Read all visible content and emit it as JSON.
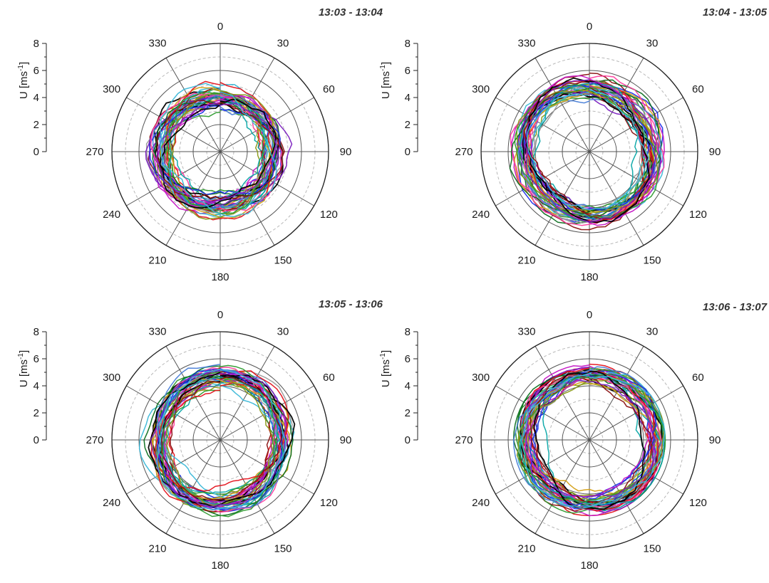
{
  "figure": {
    "panels": [
      {
        "title": "13:03 - 13:04",
        "seed": 11
      },
      {
        "title": "13:04 - 13:05",
        "seed": 23
      },
      {
        "title": "13:05 - 13:06",
        "seed": 37
      },
      {
        "title": "13:06 - 13:07",
        "seed": 51
      }
    ]
  },
  "chart_data": [
    {
      "type": "line",
      "subtype": "polar",
      "title": "13:03 - 13:04",
      "ylabel": "U [ms-1]",
      "ylabel_base": "U [ms",
      "ylabel_sup": "-1",
      "ylabel_close": "]",
      "ylim": [
        0,
        8
      ],
      "y_ticks": [
        "0",
        "2",
        "4",
        "6",
        "8"
      ],
      "angle_ticks": [
        "0",
        "30",
        "60",
        "90",
        "120",
        "150",
        "180",
        "210",
        "240",
        "270",
        "300",
        "330"
      ],
      "grid": true,
      "series_count": 40,
      "profile": {
        "r_mean_east": 3.8,
        "r_mean_west": 4.3,
        "inner_min": 2.0,
        "outer_max": 5.5
      }
    },
    {
      "type": "line",
      "subtype": "polar",
      "title": "13:04 - 13:05",
      "ylabel": "U [ms-1]",
      "ylabel_base": "U [ms",
      "ylabel_sup": "-1",
      "ylabel_close": "]",
      "ylim": [
        0,
        8
      ],
      "y_ticks": [
        "0",
        "2",
        "4",
        "6",
        "8"
      ],
      "angle_ticks": [
        "0",
        "30",
        "60",
        "90",
        "120",
        "150",
        "180",
        "210",
        "240",
        "270",
        "300",
        "330"
      ],
      "grid": true,
      "series_count": 40,
      "profile": {
        "r_mean_east": 4.6,
        "r_mean_west": 4.8,
        "inner_min": 2.2,
        "outer_max": 6.4
      }
    },
    {
      "type": "line",
      "subtype": "polar",
      "title": "13:05 - 13:06",
      "ylabel": "U [ms-1]",
      "ylabel_base": "U [ms",
      "ylabel_sup": "-1",
      "ylabel_close": "]",
      "ylim": [
        0,
        8
      ],
      "y_ticks": [
        "0",
        "2",
        "4",
        "6",
        "8"
      ],
      "angle_ticks": [
        "0",
        "30",
        "60",
        "90",
        "120",
        "150",
        "180",
        "210",
        "240",
        "270",
        "300",
        "330"
      ],
      "grid": true,
      "series_count": 40,
      "profile": {
        "r_mean_east": 4.6,
        "r_mean_west": 4.6,
        "inner_min": 2.3,
        "outer_max": 6.0
      }
    },
    {
      "type": "line",
      "subtype": "polar",
      "title": "13:06 - 13:07",
      "ylabel": "U [ms-1]",
      "ylabel_base": "U [ms",
      "ylabel_sup": "-1",
      "ylabel_close": "]",
      "ylim": [
        0,
        8
      ],
      "y_ticks": [
        "0",
        "2",
        "4",
        "6",
        "8"
      ],
      "angle_ticks": [
        "0",
        "30",
        "60",
        "90",
        "120",
        "150",
        "180",
        "210",
        "240",
        "270",
        "300",
        "330"
      ],
      "grid": true,
      "series_count": 40,
      "profile": {
        "r_mean_east": 4.9,
        "r_mean_west": 4.6,
        "inner_min": 2.0,
        "outer_max": 5.6
      }
    }
  ],
  "colors": {
    "series": [
      "#e4121b",
      "#1b2fe8",
      "#c515c5",
      "#08a6a6",
      "#8a9a18",
      "#8a1010",
      "#2e9a2e",
      "#000000",
      "#7b1fbf",
      "#3cb8d8",
      "#9b9b9b",
      "#d4a017",
      "#0a6e1e",
      "#ff40a0",
      "#4a7fd8"
    ],
    "grid_solid": "#555555",
    "grid_dashed": "#b8b8b8",
    "axis": "#222222"
  }
}
